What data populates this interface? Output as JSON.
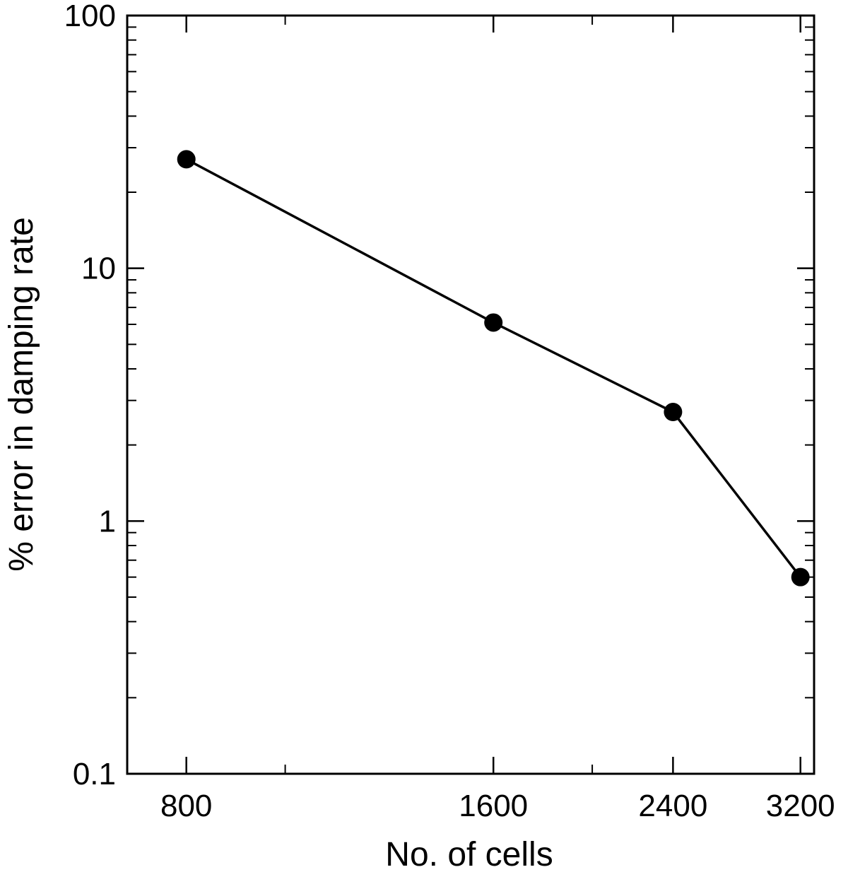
{
  "chart_data": {
    "type": "line",
    "title": "",
    "xlabel": "No. of cells",
    "ylabel": "% error in damping rate",
    "x_scale": "log",
    "y_scale": "log",
    "xlim": [
      700,
      3300
    ],
    "ylim": [
      0.1,
      100
    ],
    "x_ticks": [
      {
        "value": 800,
        "label": "800"
      },
      {
        "value": 1600,
        "label": "1600"
      },
      {
        "value": 2400,
        "label": "2400"
      },
      {
        "value": 3200,
        "label": "3200"
      }
    ],
    "y_ticks": [
      {
        "value": 0.1,
        "label": "0.1"
      },
      {
        "value": 1,
        "label": "1"
      },
      {
        "value": 10,
        "label": "10"
      },
      {
        "value": 100,
        "label": "100"
      }
    ],
    "x_minor_ticks": [
      1000,
      2000
    ],
    "grid": false,
    "series": [
      {
        "x": [
          800,
          1600,
          2400,
          3200
        ],
        "y": [
          27,
          6.1,
          2.7,
          0.6
        ],
        "marker": "circle",
        "color": "#000000"
      }
    ]
  }
}
